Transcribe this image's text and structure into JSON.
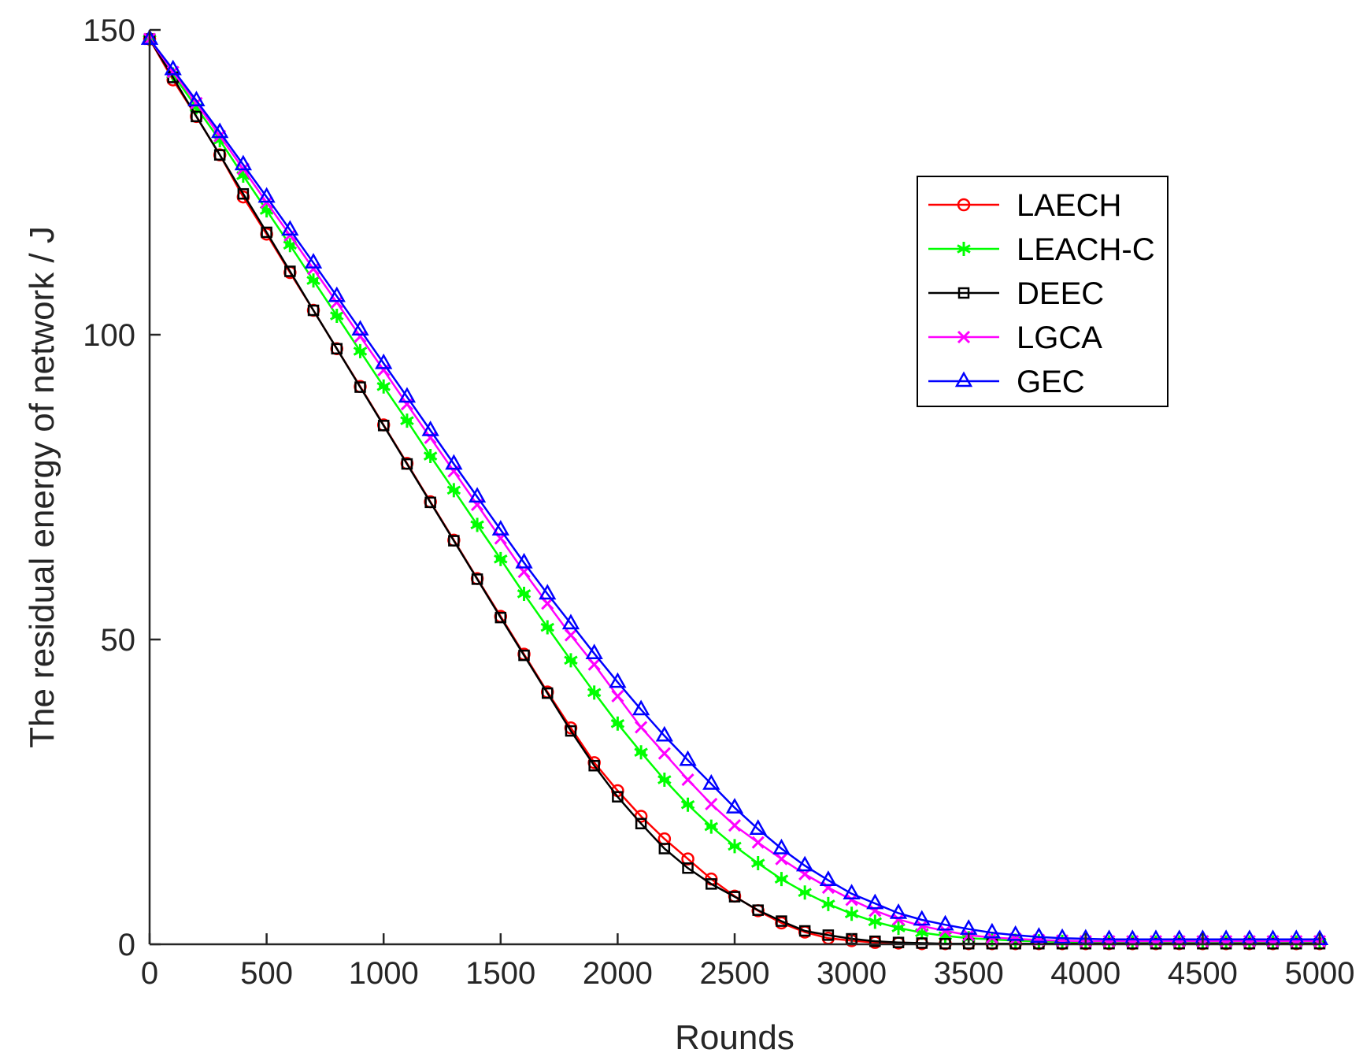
{
  "chart_data": {
    "type": "line",
    "title": "",
    "xlabel": "Rounds",
    "ylabel": "The residual energy of network / J",
    "xlim": [
      0,
      5000
    ],
    "ylim": [
      0,
      150
    ],
    "xticks": [
      0,
      500,
      1000,
      1500,
      2000,
      2500,
      3000,
      3500,
      4000,
      4500,
      5000
    ],
    "xtick_labels": [
      "0",
      "500",
      "1000",
      "1500",
      "2000",
      "2500",
      "3000",
      "3500",
      "4000",
      "4500",
      "5000"
    ],
    "yticks": [
      0,
      50,
      100,
      150
    ],
    "ytick_labels": [
      "0",
      "50",
      "100",
      "150"
    ],
    "grid": false,
    "legend_position": "top-right",
    "x": [
      0,
      100,
      200,
      300,
      400,
      500,
      600,
      700,
      800,
      900,
      1000,
      1100,
      1200,
      1300,
      1400,
      1500,
      1600,
      1700,
      1800,
      1900,
      2000,
      2100,
      2200,
      2300,
      2400,
      2500,
      2600,
      2700,
      2800,
      2900,
      3000,
      3100,
      3200,
      3300,
      3400,
      3500,
      3600,
      3700,
      3800,
      3900,
      4000,
      4100,
      4200,
      4300,
      4400,
      4500,
      4600,
      4700,
      4800,
      4900,
      5000
    ],
    "series": [
      {
        "name": "LAECH",
        "color": "#ff0000",
        "marker": "circle",
        "values": [
          148.5,
          141.8,
          135.8,
          129.5,
          122.6,
          116.5,
          110.2,
          104.0,
          97.7,
          91.5,
          85.2,
          78.9,
          72.6,
          66.3,
          60.0,
          53.8,
          47.6,
          41.4,
          35.5,
          29.8,
          25.2,
          21.0,
          17.3,
          14.0,
          10.7,
          7.9,
          5.5,
          3.5,
          2.0,
          1.0,
          0.6,
          0.3,
          0.2,
          0.1,
          0.1,
          0.1,
          0.1,
          0.1,
          0.1,
          0.1,
          0.1,
          0.1,
          0.1,
          0.1,
          0.1,
          0.1,
          0.1,
          0.1,
          0.1,
          0.1,
          0.1
        ]
      },
      {
        "name": "LEACH-C",
        "color": "#00ff00",
        "marker": "asterisk",
        "values": [
          148.5,
          142.7,
          137.3,
          131.9,
          126.1,
          120.4,
          114.7,
          108.9,
          103.1,
          97.3,
          91.5,
          85.9,
          80.1,
          74.5,
          68.8,
          63.2,
          57.5,
          52.0,
          46.6,
          41.3,
          36.2,
          31.5,
          27.0,
          22.9,
          19.3,
          16.1,
          13.3,
          10.7,
          8.5,
          6.6,
          5.0,
          3.7,
          2.7,
          1.9,
          1.4,
          1.0,
          0.8,
          0.6,
          0.5,
          0.4,
          0.4,
          0.3,
          0.3,
          0.3,
          0.3,
          0.3,
          0.3,
          0.3,
          0.3,
          0.3,
          0.3
        ]
      },
      {
        "name": "DEEC",
        "color": "#000000",
        "marker": "square",
        "values": [
          148.5,
          142.2,
          135.8,
          129.5,
          123.1,
          116.8,
          110.4,
          104.0,
          97.7,
          91.4,
          85.1,
          78.8,
          72.5,
          66.2,
          59.9,
          53.6,
          47.4,
          41.2,
          35.0,
          29.3,
          24.2,
          19.8,
          15.7,
          12.5,
          9.9,
          7.8,
          5.6,
          3.8,
          2.2,
          1.5,
          0.9,
          0.5,
          0.3,
          0.2,
          0.1,
          0.1,
          0.1,
          0.1,
          0.1,
          0.1,
          0.1,
          0.1,
          0.1,
          0.1,
          0.1,
          0.1,
          0.1,
          0.1,
          0.1,
          0.1,
          0.1
        ]
      },
      {
        "name": "LGCA",
        "color": "#ff00ff",
        "marker": "x",
        "values": [
          148.5,
          143.1,
          138.0,
          132.6,
          127.2,
          121.7,
          116.3,
          110.8,
          105.3,
          99.7,
          94.2,
          88.6,
          83.1,
          77.6,
          72.1,
          66.6,
          61.1,
          55.9,
          50.7,
          45.9,
          40.7,
          35.6,
          31.3,
          27.0,
          23.0,
          19.5,
          16.7,
          14.0,
          11.5,
          9.3,
          7.3,
          5.5,
          4.1,
          3.0,
          2.2,
          1.5,
          1.1,
          0.9,
          0.7,
          0.6,
          0.5,
          0.5,
          0.5,
          0.5,
          0.5,
          0.5,
          0.5,
          0.5,
          0.5,
          0.5,
          0.5
        ]
      },
      {
        "name": "GEC",
        "color": "#0000ff",
        "marker": "triangle",
        "values": [
          148.5,
          143.5,
          138.4,
          133.2,
          127.9,
          122.6,
          117.2,
          111.8,
          106.3,
          100.8,
          95.3,
          89.8,
          84.3,
          78.8,
          73.4,
          68.0,
          62.6,
          57.5,
          52.6,
          47.7,
          43.0,
          38.5,
          34.2,
          30.2,
          26.3,
          22.4,
          18.9,
          15.7,
          12.9,
          10.5,
          8.3,
          6.7,
          5.1,
          4.0,
          3.2,
          2.5,
          1.9,
          1.5,
          1.2,
          1.0,
          0.9,
          0.8,
          0.8,
          0.8,
          0.8,
          0.8,
          0.8,
          0.8,
          0.8,
          0.8,
          0.8
        ]
      }
    ]
  }
}
